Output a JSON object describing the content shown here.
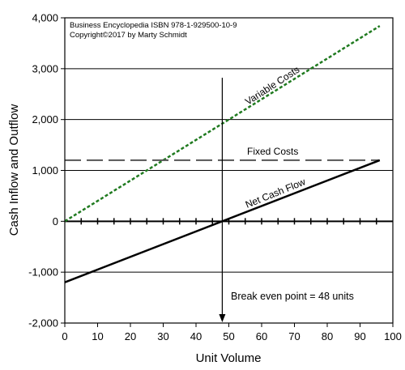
{
  "chart_data": {
    "type": "line",
    "title": "",
    "xlabel": "Unit Volume",
    "ylabel": "Cash Inflow and Outflow",
    "xlim": [
      0,
      100
    ],
    "ylim": [
      -2000,
      4000
    ],
    "x_ticks": [
      "0",
      "10",
      "20",
      "30",
      "40",
      "50",
      "60",
      "70",
      "80",
      "90",
      "100"
    ],
    "y_ticks": [
      "-2,000",
      "-1,000",
      "0",
      "1,000",
      "2,000",
      "3,000",
      "4,000"
    ],
    "y_tick_values": [
      -2000,
      -1000,
      0,
      1000,
      2000,
      3000,
      4000
    ],
    "grid": "horizontal",
    "series": [
      {
        "name": "Variable Costs",
        "x": [
          0,
          96
        ],
        "values": [
          0,
          3840
        ],
        "color": "#1f7a1f",
        "style": "dotted"
      },
      {
        "name": "Fixed Costs",
        "x": [
          0,
          96
        ],
        "values": [
          1200,
          1200
        ],
        "color": "#555555",
        "style": "dashed"
      },
      {
        "name": "Net Cash Flow",
        "x": [
          0,
          96
        ],
        "values": [
          -1200,
          1200
        ],
        "color": "#000000",
        "style": "solid"
      }
    ],
    "annotations": {
      "break_even_x": 48,
      "break_even_label": "Break even point = 48 units"
    },
    "notice": {
      "line1": "Business Encyclopedia ISBN 978-1-929500-10-9",
      "line2": "Copyright©2017  by Marty Schmidt"
    }
  }
}
